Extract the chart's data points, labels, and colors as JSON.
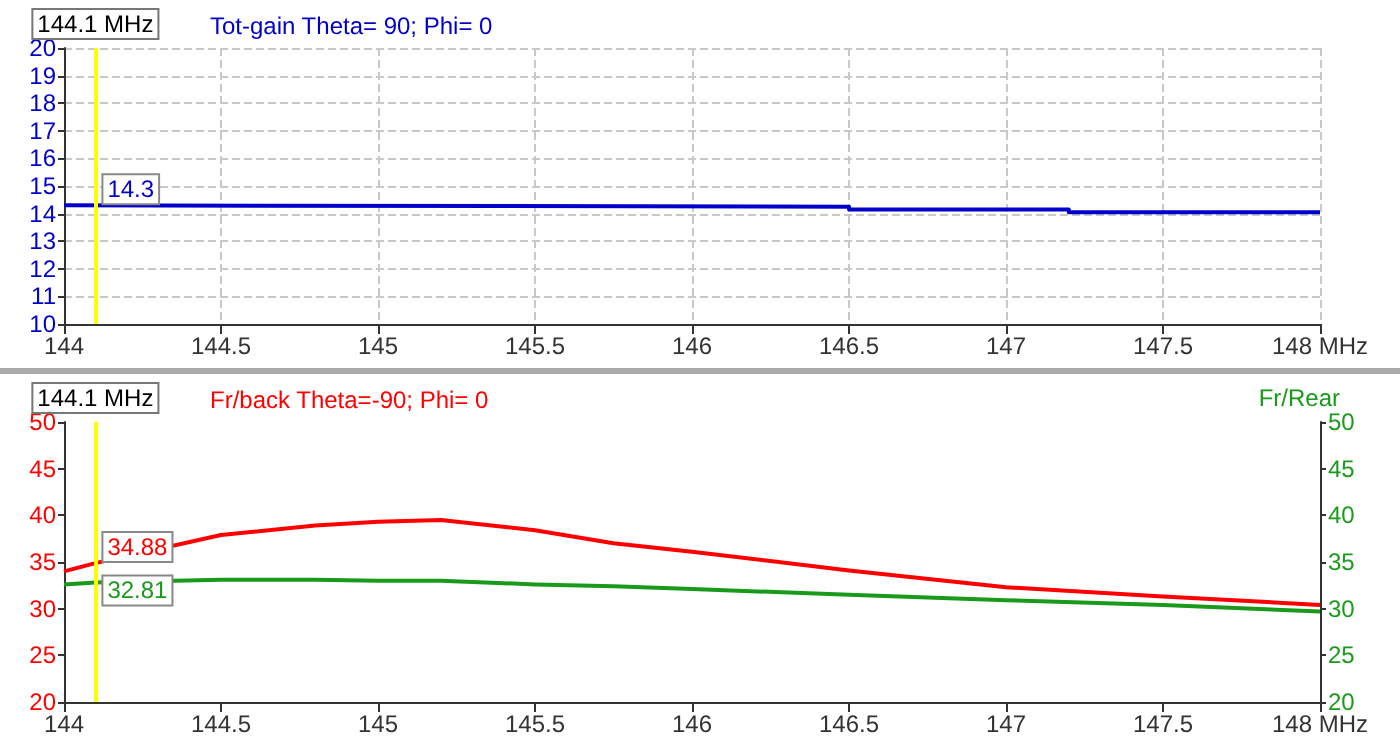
{
  "chart_data": [
    {
      "type": "step",
      "title": "Tot-gain Theta= 90; Phi= 0",
      "x": [
        144,
        146.5,
        147.2,
        147.8,
        148
      ],
      "series": [
        {
          "color": "#0000cc",
          "values": [
            14.3,
            14.25,
            14.15,
            14.05,
            14.05
          ]
        }
      ],
      "xlim": [
        144,
        148
      ],
      "xticks": [
        144,
        144.5,
        145,
        145.5,
        146,
        146.5,
        147,
        147.5,
        {
          "value": 148,
          "label": "148 MHz"
        }
      ],
      "ylim": [
        10,
        20
      ],
      "yticks": [
        10,
        11,
        12,
        13,
        14,
        15,
        16,
        17,
        18,
        19,
        20
      ],
      "grid": true,
      "ref_lines": [
        {
          "axis": "x",
          "value": 144.1,
          "label": "144.1 MHz",
          "color": "#ffff00"
        }
      ],
      "annotations": [
        {
          "text": "14.3",
          "y": 14.3
        }
      ]
    },
    {
      "type": "line",
      "title": "Fr/back Theta=-90; Phi= 0",
      "y2label": "Fr/Rear",
      "x": [
        144,
        144.1,
        144.5,
        144.8,
        145,
        145.2,
        145.5,
        145.75,
        146,
        146.5,
        147,
        147.5,
        148
      ],
      "series": [
        {
          "color": "#ff0000",
          "values": [
            34.0,
            34.88,
            37.9,
            38.9,
            39.3,
            39.5,
            38.4,
            37.0,
            36.1,
            34.1,
            32.3,
            31.3,
            30.4
          ]
        },
        {
          "color": "#1a9a1a",
          "axis": "y2",
          "values": [
            32.6,
            32.81,
            33.1,
            33.1,
            33.0,
            33.0,
            32.6,
            32.4,
            32.1,
            31.5,
            30.9,
            30.4,
            29.7
          ]
        }
      ],
      "xlim": [
        144,
        148
      ],
      "xticks": [
        144,
        144.5,
        145,
        145.5,
        146,
        146.5,
        147,
        147.5,
        {
          "value": 148,
          "label": "148 MHz"
        }
      ],
      "ylim": [
        20,
        50
      ],
      "yticks": [
        20,
        25,
        30,
        35,
        40,
        45,
        50
      ],
      "y2lim": [
        20,
        50
      ],
      "y2ticks": [
        20,
        25,
        30,
        35,
        40,
        45,
        50
      ],
      "grid": false,
      "ref_lines": [
        {
          "axis": "x",
          "value": 144.1,
          "label": "144.1 MHz",
          "color": "#ffff00"
        }
      ],
      "annotations": [
        {
          "text": "34.88",
          "y": 34.88
        },
        {
          "text": "32.81",
          "y": 32.81
        }
      ]
    }
  ]
}
